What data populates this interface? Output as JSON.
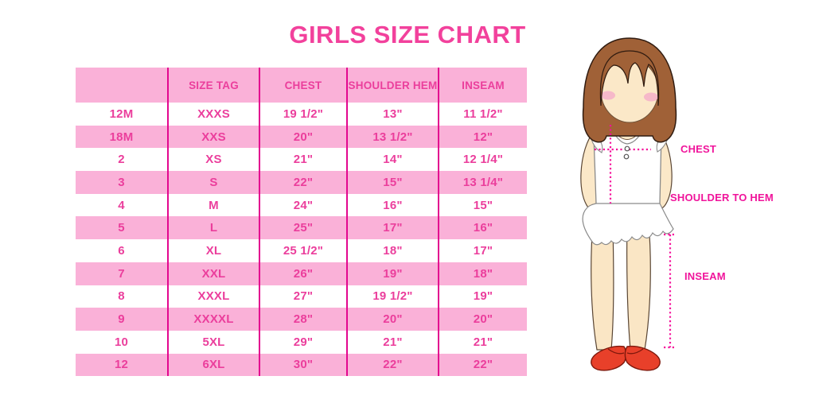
{
  "chart_data": {
    "type": "table",
    "title": "GIRLS SIZE CHART",
    "headers": [
      "",
      "SIZE TAG",
      "CHEST",
      "SHOULDER HEM",
      "INSEAM"
    ],
    "rows": [
      [
        "12M",
        "XXXS",
        "19 1/2\"",
        "13\"",
        "11 1/2\""
      ],
      [
        "18M",
        "XXS",
        "20\"",
        "13 1/2\"",
        "12\""
      ],
      [
        "2",
        "XS",
        "21\"",
        "14\"",
        "12 1/4\""
      ],
      [
        "3",
        "S",
        "22\"",
        "15\"",
        "13 1/4\""
      ],
      [
        "4",
        "M",
        "24\"",
        "16\"",
        "15\""
      ],
      [
        "5",
        "L",
        "25\"",
        "17\"",
        "16\""
      ],
      [
        "6",
        "XL",
        "25 1/2\"",
        "18\"",
        "17\""
      ],
      [
        "7",
        "XXL",
        "26\"",
        "19\"",
        "18\""
      ],
      [
        "8",
        "XXXL",
        "27\"",
        "19 1/2\"",
        "19\""
      ],
      [
        "9",
        "XXXXL",
        "28\"",
        "20\"",
        "20\""
      ],
      [
        "10",
        "5XL",
        "29\"",
        "21\"",
        "21\""
      ],
      [
        "12",
        "6XL",
        "30\"",
        "22\"",
        "22\""
      ]
    ],
    "layout": {
      "stripe_pattern": "header pink, then rows alternate white/pink",
      "grid": "vertical magenta separators only"
    }
  },
  "figure": {
    "labels": {
      "chest": "CHEST",
      "shoulder_to_hem": "SHOULDER TO HEM",
      "inseam": "INSEAM"
    }
  },
  "colors": {
    "accent_pink": "#F2419C",
    "row_pink": "#FAB1D8",
    "grid_line": "#E3078F",
    "table_text": "#EB3E9C",
    "label_pink": "#F0149B",
    "hair_brown": "#A06137",
    "skin": "#FBE8C8",
    "shoe_red": "#E8402A"
  }
}
